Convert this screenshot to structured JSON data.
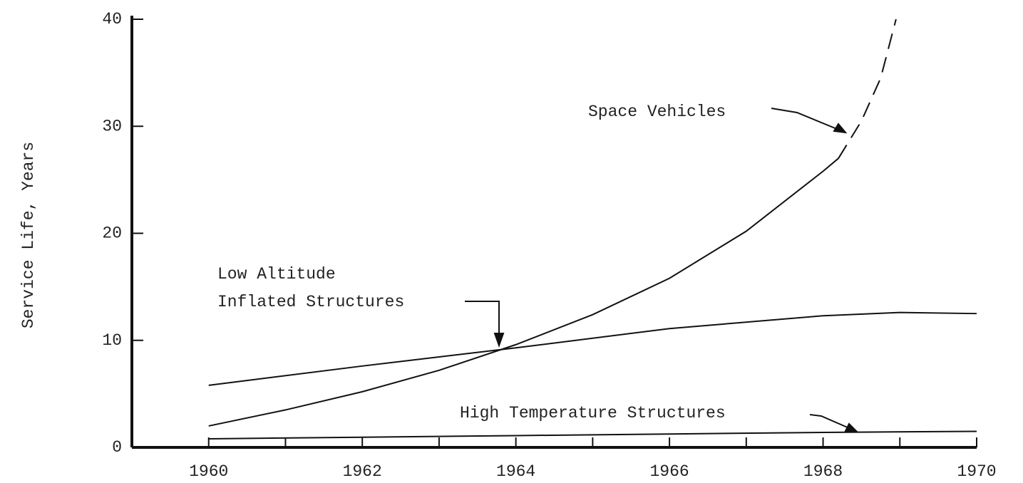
{
  "chart_data": {
    "type": "line",
    "ylabel": "Service Life, Years",
    "xlim": [
      1959,
      1970
    ],
    "ylim": [
      0,
      40
    ],
    "xticks": [
      1960,
      1962,
      1964,
      1966,
      1968,
      1970
    ],
    "xminor_ticks": [
      1961,
      1963,
      1965,
      1967,
      1969
    ],
    "yticks": [
      0,
      10,
      20,
      30,
      40
    ],
    "grid": false,
    "annotations": [
      {
        "lines": [
          "Space Vehicles"
        ]
      },
      {
        "lines": [
          "Low Altitude",
          "Inflated Structures"
        ]
      },
      {
        "lines": [
          "High Temperature Structures"
        ]
      }
    ],
    "series": [
      {
        "name": "Space Vehicles",
        "color": "#111111",
        "dashed_after": 1968.2,
        "x": [
          1960,
          1961,
          1962,
          1963,
          1964,
          1965,
          1966,
          1967,
          1968,
          1968.2,
          1968.5,
          1968.75,
          1968.95
        ],
        "values": [
          2,
          3.5,
          5.2,
          7.2,
          9.6,
          12.4,
          15.8,
          20.2,
          25.8,
          27,
          30.5,
          34.5,
          40
        ]
      },
      {
        "name": "Low Altitude Inflated Structures",
        "color": "#111111",
        "x": [
          1960,
          1962,
          1964,
          1966,
          1968,
          1969,
          1970
        ],
        "values": [
          5.8,
          7.6,
          9.3,
          11.1,
          12.3,
          12.6,
          12.5
        ]
      },
      {
        "name": "High Temperature Structures",
        "color": "#111111",
        "x": [
          1960,
          1962,
          1964,
          1966,
          1968,
          1970
        ],
        "values": [
          0.8,
          0.95,
          1.1,
          1.25,
          1.4,
          1.5
        ]
      }
    ]
  }
}
